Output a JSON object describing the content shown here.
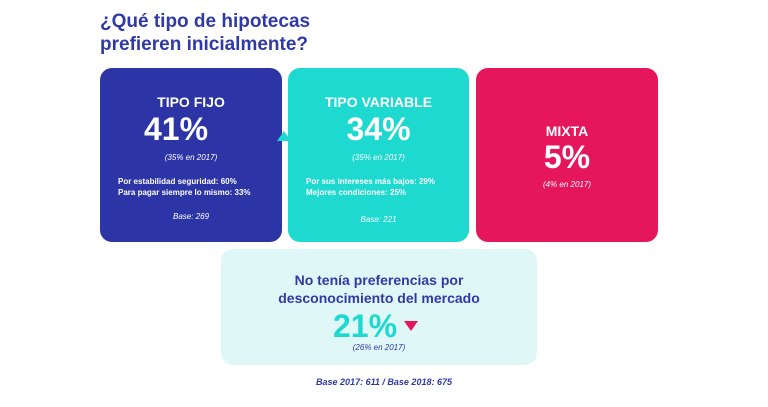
{
  "title": {
    "line1": "¿Qué tipo de hipotecas",
    "line2": "prefieren inicialmente?"
  },
  "colors": {
    "navy": "#2c34a6",
    "teal": "#1dd9cf",
    "pink": "#e6165d",
    "pale_teal": "#dff7f6"
  },
  "cards": {
    "fijo": {
      "title": "TIPO FIJO",
      "pct": "41%",
      "trend_icon": "triangle-up-icon",
      "prev": "(35% en 2017)",
      "reason1": "Por estabilidad seguridad: 60%",
      "reason2": "Para pagar siempre lo mismo: 33%",
      "base": "Base: 269"
    },
    "variable": {
      "title": "TIPO VARIABLE",
      "pct": "34%",
      "prev": "(35% en 2017)",
      "reason1": "Por sus intereses más bajos: 29%",
      "reason2": "Mejores condiciones: 25%",
      "base": "Base: 221"
    },
    "mixta": {
      "title": "MIXTA",
      "pct": "5%",
      "prev": "(4% en 2017)"
    },
    "nopref": {
      "title1": "No tenía preferencias por",
      "title2": "desconocimiento del mercado",
      "pct": "21%",
      "trend_icon": "triangle-down-icon",
      "prev": "(26% en 2017)"
    }
  },
  "footer": "Base 2017: 611 / Base 2018: 675"
}
